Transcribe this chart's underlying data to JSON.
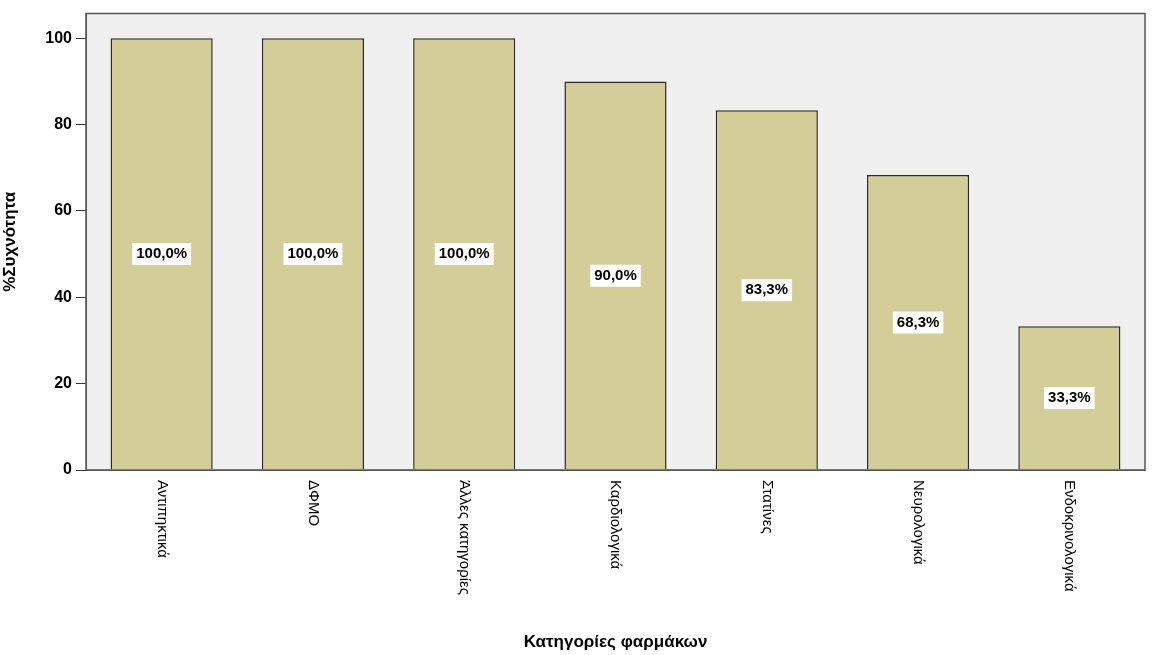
{
  "chart_data": {
    "type": "bar",
    "xlabel": "Κατηγορίες φαρμάκων",
    "ylabel": "%Συχνότητα",
    "categories": [
      "Αντιπηκτικά",
      "ΔΦΜΟ",
      "Άλλες κατηγορίες",
      "Καρδιολογικά",
      "Στατίνες",
      "Νευρολογικά",
      "Ενδοκρινολογικά"
    ],
    "values": [
      100,
      100,
      100,
      90,
      83.3,
      68.3,
      33.3
    ],
    "value_labels": [
      "100,0%",
      "100,0%",
      "100,0%",
      "90,0%",
      "83,3%",
      "68,3%",
      "33,3%"
    ],
    "color": "#d3ce97",
    "ylim": [
      0,
      105.7
    ],
    "yticks": [
      0,
      20,
      40,
      60,
      80,
      100
    ],
    "grid": false,
    "legend": false
  }
}
